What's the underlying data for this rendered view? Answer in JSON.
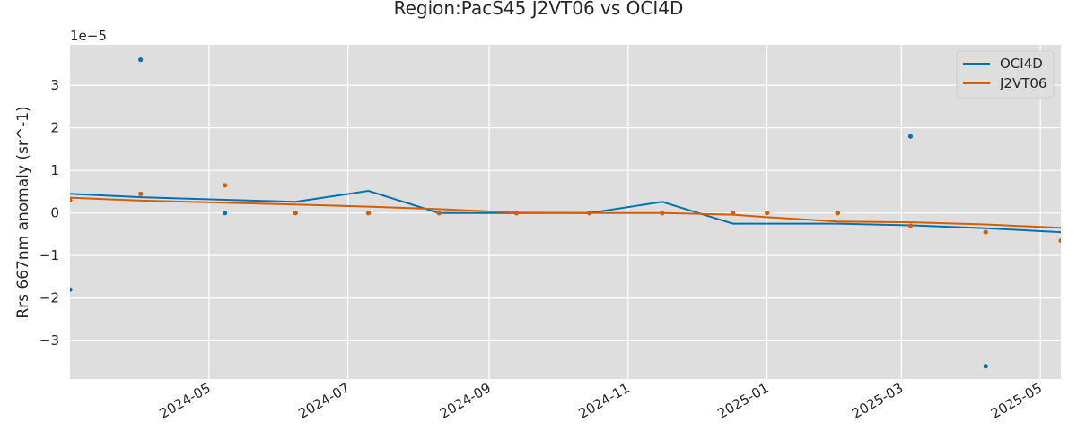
{
  "chart_data": {
    "type": "line",
    "title": "Region:PacS45 J2VT06 vs OCI4D",
    "xlabel": "",
    "ylabel": "Rrs 667nm anomaly (sr^-1)",
    "y_offset_label": "1e−5",
    "y_scale": 1e-05,
    "xlim": [
      "2024-03-01",
      "2025-05-10"
    ],
    "ylim": [
      -3.9,
      3.95
    ],
    "x_ticks": [
      "2024-05-01",
      "2024-07-01",
      "2024-09-01",
      "2024-11-01",
      "2025-01-01",
      "2025-03-01",
      "2025-05-01"
    ],
    "x_tick_labels": [
      "2024-05",
      "2024-07",
      "2024-09",
      "2024-11",
      "2025-01",
      "2025-03",
      "2025-05"
    ],
    "y_ticks": [
      -3,
      -2,
      -1,
      0,
      1,
      2,
      3
    ],
    "y_tick_labels": [
      "−3",
      "−2",
      "−1",
      "0",
      "1",
      "2",
      "3"
    ],
    "grid": true,
    "legend_position": "top-right",
    "series": [
      {
        "name": "OCI4D",
        "color": "#0072b2",
        "line": {
          "x": [
            "2024-03-01",
            "2024-04-01",
            "2024-05-08",
            "2024-06-08",
            "2024-07-10",
            "2024-08-10",
            "2024-09-13",
            "2024-10-15",
            "2024-11-16",
            "2024-12-17",
            "2025-02-01",
            "2025-03-05",
            "2025-04-07",
            "2025-05-10"
          ],
          "y": [
            0.45,
            0.37,
            0.31,
            0.26,
            0.52,
            0.0,
            0.0,
            0.0,
            0.26,
            -0.25,
            -0.25,
            -0.29,
            -0.36,
            -0.45
          ]
        },
        "points": {
          "x": [
            "2024-03-01",
            "2024-04-01",
            "2024-05-08",
            "2024-06-08",
            "2024-07-10",
            "2024-08-10",
            "2024-09-13",
            "2024-10-15",
            "2024-11-16",
            "2024-12-17",
            "2025-02-01",
            "2025-03-05",
            "2025-04-07"
          ],
          "y": [
            -1.8,
            3.6,
            0.0,
            0.0,
            0.0,
            0.0,
            0.0,
            0.0,
            0.0,
            0.0,
            0.0,
            1.8,
            -3.6
          ]
        }
      },
      {
        "name": "J2VT06",
        "color": "#d55e00",
        "line": {
          "x": [
            "2024-03-01",
            "2024-04-01",
            "2024-05-08",
            "2024-06-08",
            "2024-07-10",
            "2024-08-10",
            "2024-09-13",
            "2024-10-15",
            "2024-11-16",
            "2024-12-17",
            "2025-01-01",
            "2025-02-01",
            "2025-03-05",
            "2025-04-07",
            "2025-05-10"
          ],
          "y": [
            0.36,
            0.29,
            0.24,
            0.2,
            0.15,
            0.09,
            0.01,
            0.0,
            0.0,
            -0.04,
            -0.1,
            -0.2,
            -0.22,
            -0.27,
            -0.35
          ]
        },
        "points": {
          "x": [
            "2024-03-01",
            "2024-04-01",
            "2024-05-08",
            "2024-06-08",
            "2024-07-10",
            "2024-08-10",
            "2024-09-13",
            "2024-10-15",
            "2024-11-16",
            "2024-12-17",
            "2025-01-01",
            "2025-02-01",
            "2025-03-05",
            "2025-04-07",
            "2025-05-10"
          ],
          "y": [
            0.3,
            0.45,
            0.65,
            0.0,
            0.0,
            0.0,
            0.0,
            0.0,
            0.0,
            0.0,
            0.0,
            0.0,
            -0.3,
            -0.45,
            -0.65
          ]
        }
      }
    ]
  }
}
